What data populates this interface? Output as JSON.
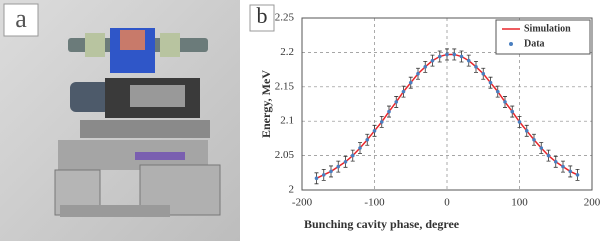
{
  "figure": {
    "labels": [
      "a",
      "b"
    ]
  },
  "chart_data": {
    "type": "line",
    "x_label": "Bunching cavity  phase, degree",
    "y_label": "Energy, MeV",
    "x": [
      -180,
      -170,
      -160,
      -150,
      -140,
      -130,
      -120,
      -110,
      -100,
      -90,
      -80,
      -70,
      -60,
      -50,
      -40,
      -30,
      -20,
      -10,
      0,
      10,
      20,
      30,
      40,
      50,
      60,
      70,
      80,
      90,
      100,
      110,
      120,
      130,
      140,
      150,
      160,
      170,
      180
    ],
    "series": [
      {
        "name": "Simulation",
        "color": "#e8262b",
        "style": "line",
        "values": [
          2.017,
          2.022,
          2.027,
          2.034,
          2.041,
          2.05,
          2.061,
          2.073,
          2.086,
          2.099,
          2.114,
          2.128,
          2.143,
          2.156,
          2.169,
          2.179,
          2.188,
          2.194,
          2.197,
          2.197,
          2.194,
          2.188,
          2.179,
          2.169,
          2.156,
          2.143,
          2.128,
          2.114,
          2.099,
          2.086,
          2.073,
          2.061,
          2.05,
          2.041,
          2.034,
          2.027,
          2.022
        ]
      },
      {
        "name": "Data",
        "color": "#4a7fc0",
        "style": "points",
        "values": [
          2.017,
          2.022,
          2.027,
          2.034,
          2.041,
          2.05,
          2.061,
          2.073,
          2.086,
          2.099,
          2.114,
          2.128,
          2.143,
          2.156,
          2.169,
          2.179,
          2.188,
          2.194,
          2.197,
          2.197,
          2.194,
          2.188,
          2.179,
          2.169,
          2.156,
          2.143,
          2.128,
          2.114,
          2.099,
          2.086,
          2.073,
          2.061,
          2.05,
          2.041,
          2.034,
          2.027,
          2.022
        ],
        "errors": [
          0.008,
          0.008,
          0.008,
          0.008,
          0.008,
          0.008,
          0.008,
          0.008,
          0.008,
          0.008,
          0.008,
          0.008,
          0.008,
          0.008,
          0.008,
          0.008,
          0.008,
          0.008,
          0.008,
          0.008,
          0.008,
          0.008,
          0.008,
          0.008,
          0.008,
          0.008,
          0.008,
          0.008,
          0.008,
          0.008,
          0.008,
          0.008,
          0.008,
          0.008,
          0.008,
          0.008,
          0.008
        ]
      }
    ],
    "xlim": [
      -200,
      200
    ],
    "xticks": [
      -200,
      -100,
      0,
      100,
      200
    ],
    "ylim": [
      2,
      2.25
    ],
    "yticks": [
      2,
      2.05,
      2.1,
      2.15,
      2.2,
      2.25
    ],
    "grid": true,
    "legend": "upper-right"
  }
}
